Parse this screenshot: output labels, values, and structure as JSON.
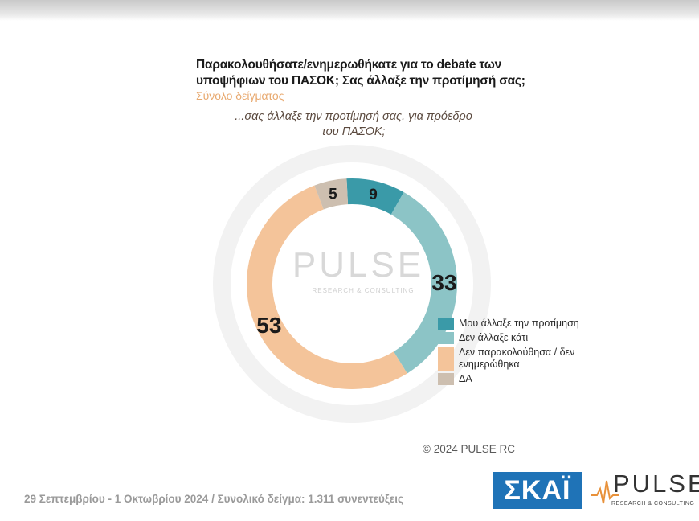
{
  "title": "Παρακολουθήσατε/ενημερωθήκατε για το debate των υποψήφιων του ΠΑΣΟΚ;  Σας άλλαξε την προτίμησή σας;",
  "subtitle": "Σύνολο δείγματος",
  "question": "...σας άλλαξε την προτίμησή σας, για πρόεδρο του ΠΑΣΟΚ;",
  "watermark": {
    "brand": "PULSE",
    "tagline": "RESEARCH & CONSULTING"
  },
  "copyright": "© 2024 PULSE RC",
  "footer": "29 Σεπτεμβρίου - 1 Οκτωβρίου 2024  /  Συνολικό δείγμα:  1.311 συνεντεύξεις",
  "logos": {
    "skai": "ΣΚΑΪ",
    "pulse": "PULSE",
    "pulse_tagline": "RESEARCH & CONSULTING"
  },
  "chart_data": {
    "type": "pie",
    "variant": "donut",
    "title": "",
    "legend_position": "right-bottom",
    "slices": [
      {
        "label": "Μου άλλαξε την προτίμηση",
        "value": 9,
        "color": "#3a9aa8"
      },
      {
        "label": "Δεν άλλαξε κάτι",
        "value": 33,
        "color": "#8cc4c6"
      },
      {
        "label": "Δεν παρακολούθησα / δεν ενημερώθηκα",
        "value": 53,
        "color": "#f4c49a"
      },
      {
        "label": "ΔΑ",
        "value": 5,
        "color": "#cdbfb0"
      }
    ]
  }
}
